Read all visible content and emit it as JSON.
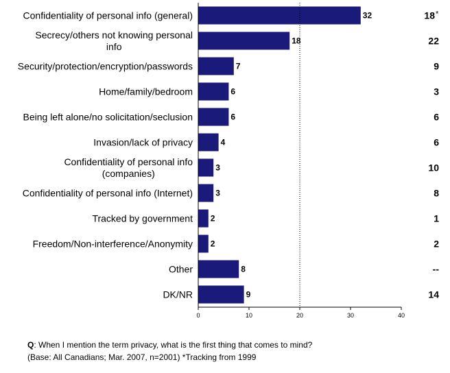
{
  "chart_data": {
    "type": "bar",
    "orientation": "horizontal",
    "categories": [
      "Confidentiality of personal info (general)",
      "Secrecy/others not knowing personal info",
      "Security/protection/encryption/passwords",
      "Home/family/bedroom",
      "Being left alone/no solicitation/seclusion",
      "Invasion/lack of privacy",
      "Confidentiality of personal info (companies)",
      "Confidentiality of personal info (Internet)",
      "Tracked by government",
      "Freedom/Non-interference/Anonymity",
      "Other",
      "DK/NR"
    ],
    "category_lines": [
      [
        "Confidentiality of personal info (general)"
      ],
      [
        "Secrecy/others not knowing personal",
        "info"
      ],
      [
        "Security/protection/encryption/passwords"
      ],
      [
        "Home/family/bedroom"
      ],
      [
        "Being left alone/no solicitation/seclusion"
      ],
      [
        "Invasion/lack of privacy"
      ],
      [
        "Confidentiality of personal info",
        "(companies)"
      ],
      [
        "Confidentiality of personal info (Internet)"
      ],
      [
        "Tracked by government"
      ],
      [
        "Freedom/Non-interference/Anonymity"
      ],
      [
        "Other"
      ],
      [
        "DK/NR"
      ]
    ],
    "values": [
      32,
      18,
      7,
      6,
      6,
      4,
      3,
      3,
      2,
      2,
      8,
      9
    ],
    "value_labels": [
      "32",
      "18",
      "7",
      "6",
      "6",
      "4",
      "3",
      "3",
      "2",
      "2",
      "8",
      "9"
    ],
    "tracking_values": [
      "18",
      "22",
      "9",
      "3",
      "6",
      "6",
      "10",
      "8",
      "1",
      "2",
      "--",
      "14"
    ],
    "tracking_marker": "*",
    "xlim": [
      0,
      40
    ],
    "x_ticks": [
      0,
      10,
      20,
      30,
      40
    ],
    "reference_line": 20,
    "bar_color": "#1a1a7a",
    "grid": false
  },
  "footnote": {
    "q_label": "Q",
    "question": ": When I mention the term privacy, what is the first thing that comes to mind?",
    "base": "(Base: All Canadians; Mar. 2007, n=2001) *Tracking from 1999"
  }
}
